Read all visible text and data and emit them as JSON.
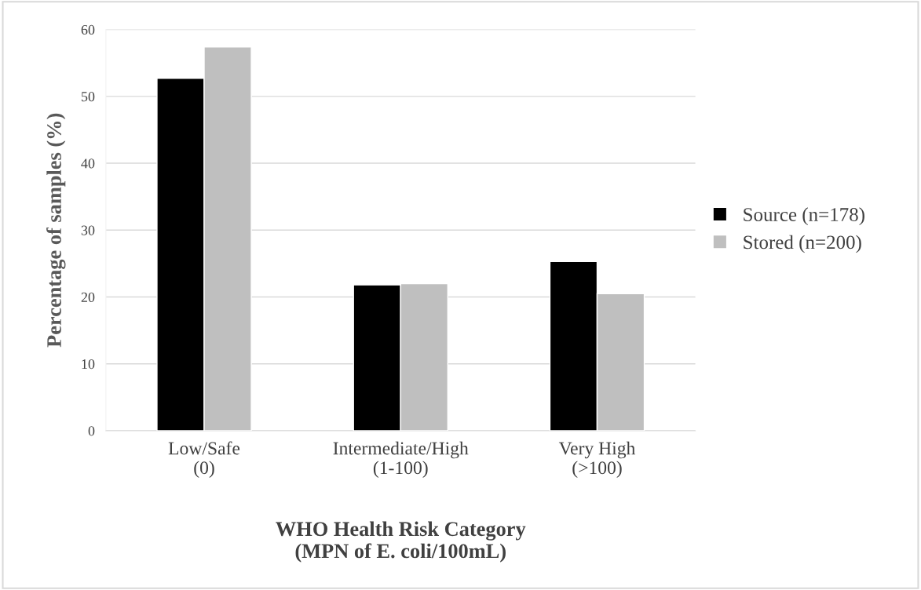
{
  "chart_data": {
    "type": "bar",
    "xlabel": "WHO Health Risk Category\n(MPN of E. coli/100mL)",
    "ylabel": "Percentage of samples (%)",
    "categories": [
      "Low/Safe\n(0)",
      "Intermediate/High\n(1-100)",
      "Very High\n(>100)"
    ],
    "series": [
      {
        "name": "Source (n=178)",
        "color": "#000000",
        "values": [
          52.7,
          21.8,
          25.3
        ]
      },
      {
        "name": "Stored (n=200)",
        "color": "#bfbfbf",
        "values": [
          57.4,
          22.0,
          20.5
        ]
      }
    ],
    "ylim": [
      0,
      60
    ],
    "yticks": [
      0,
      10,
      20,
      30,
      40,
      50,
      60
    ],
    "grid": "y",
    "legend": "right"
  }
}
